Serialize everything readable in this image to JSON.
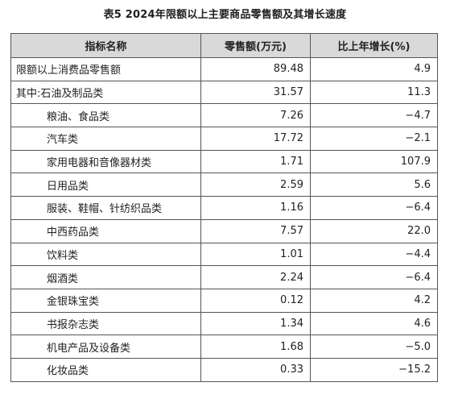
{
  "title": "表5  2024年限额以上主要商品零售额及其增长速度",
  "headers": {
    "name": "指标名称",
    "sales": "零售额(万元)",
    "growth": "比上年增长(%)"
  },
  "rows": [
    {
      "name": "限额以上消费品零售额",
      "sales": "89.48",
      "growth": "4.9",
      "indent": false
    },
    {
      "name": "其中:石油及制品类",
      "sales": "31.57",
      "growth": "11.3",
      "indent": false
    },
    {
      "name": "粮油、食品类",
      "sales": "7.26",
      "growth": "−4.7",
      "indent": true
    },
    {
      "name": "汽车类",
      "sales": "17.72",
      "growth": "−2.1",
      "indent": true
    },
    {
      "name": "家用电器和音像器材类",
      "sales": "1.71",
      "growth": "107.9",
      "indent": true
    },
    {
      "name": "日用品类",
      "sales": "2.59",
      "growth": "5.6",
      "indent": true
    },
    {
      "name": "服装、鞋帽、针纺织品类",
      "sales": "1.16",
      "growth": "−6.4",
      "indent": true
    },
    {
      "name": "中西药品类",
      "sales": "7.57",
      "growth": "22.0",
      "indent": true
    },
    {
      "name": "饮料类",
      "sales": "1.01",
      "growth": "−4.4",
      "indent": true
    },
    {
      "name": "烟酒类",
      "sales": "2.24",
      "growth": "−6.4",
      "indent": true
    },
    {
      "name": "金银珠宝类",
      "sales": "0.12",
      "growth": "4.2",
      "indent": true
    },
    {
      "name": "书报杂志类",
      "sales": "1.34",
      "growth": "4.6",
      "indent": true
    },
    {
      "name": "机电产品及设备类",
      "sales": "1.68",
      "growth": "−5.0",
      "indent": true
    },
    {
      "name": "化妆品类",
      "sales": "0.33",
      "growth": "−15.2",
      "indent": true
    }
  ]
}
